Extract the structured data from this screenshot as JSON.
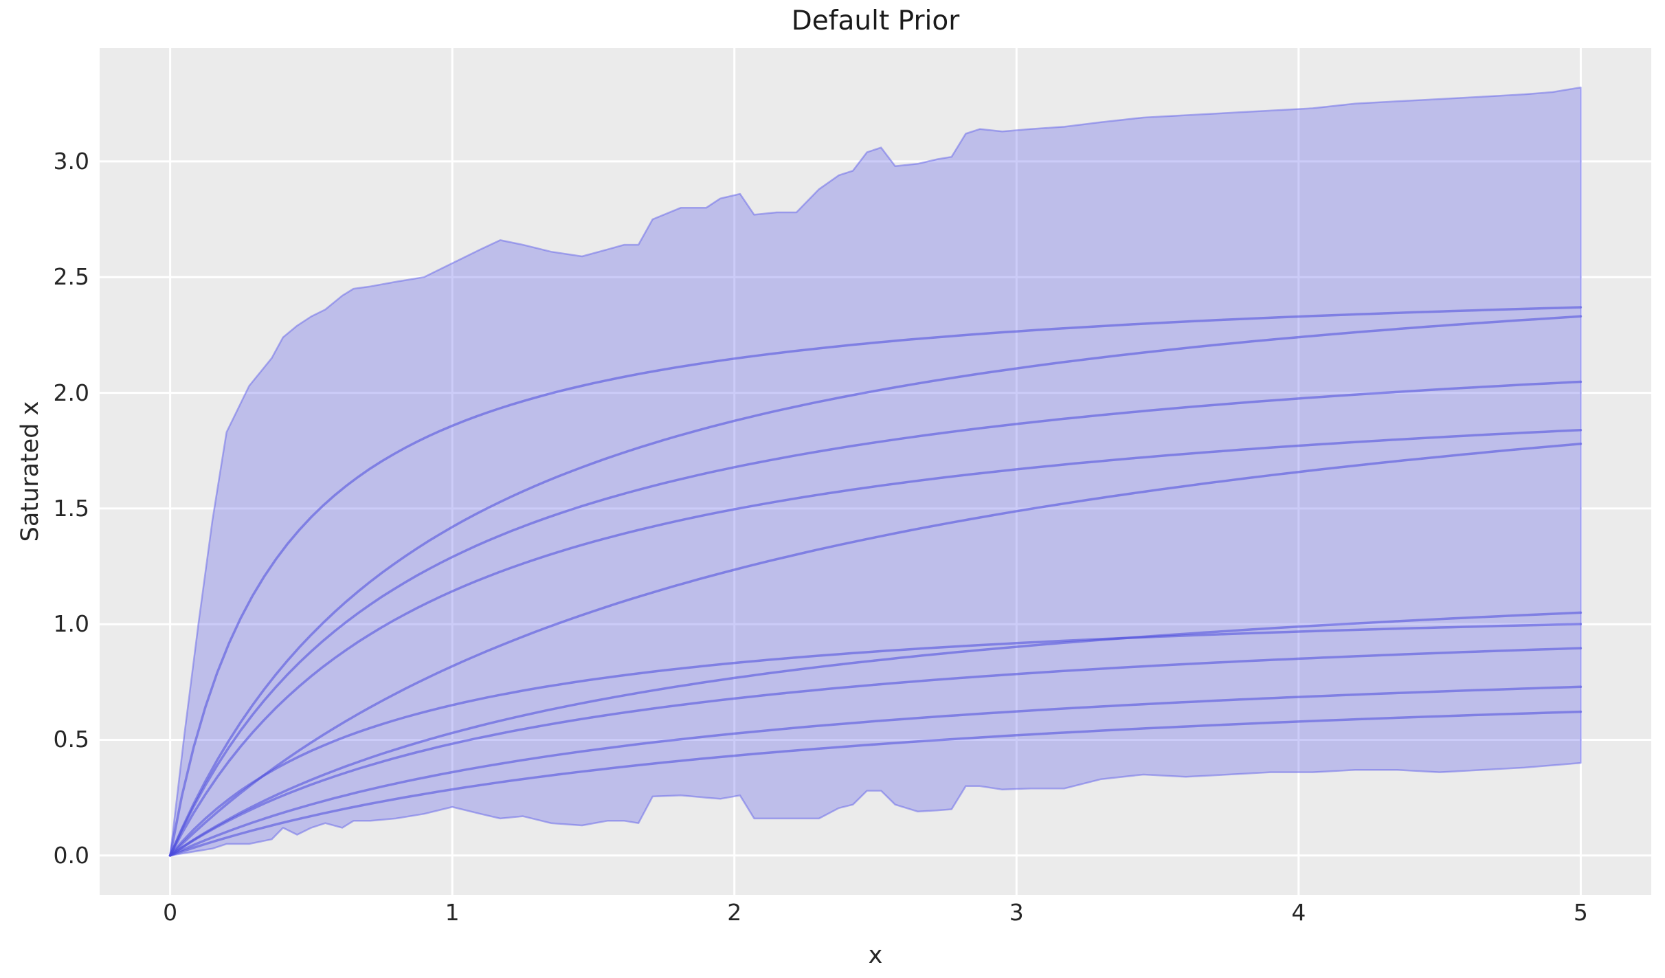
{
  "chart_data": {
    "type": "line",
    "title": "Default Prior",
    "xlabel": "x",
    "ylabel": "Saturated x",
    "xlim": [
      -0.25,
      5.25
    ],
    "ylim": [
      -0.17,
      3.49
    ],
    "grid": true,
    "legend": "none",
    "xticks": [
      0,
      1,
      2,
      3,
      4,
      5
    ],
    "xtick_labels": [
      "0",
      "1",
      "2",
      "3",
      "4",
      "5"
    ],
    "yticks": [
      0.0,
      0.5,
      1.0,
      1.5,
      2.0,
      2.5,
      3.0
    ],
    "ytick_labels": [
      "0.0",
      "0.5",
      "1.0",
      "1.5",
      "2.0",
      "2.5",
      "3.0"
    ],
    "colors": {
      "figure_bg": "#ffffff",
      "axes_bg": "#ebebeb",
      "grid": "#ffffff",
      "band_fill": "rgba(99,99,233,0.33)",
      "band_edge": "rgba(99,99,233,0.50)",
      "curve": "rgba(75,75,220,0.55)",
      "text": "#262626"
    },
    "band": {
      "name": "prior-hdi-band",
      "x": [
        0,
        0.05,
        0.1,
        0.15,
        0.2,
        0.28,
        0.36,
        0.4,
        0.45,
        0.5,
        0.55,
        0.61,
        0.65,
        0.71,
        0.8,
        0.9,
        1.0,
        1.1,
        1.17,
        1.25,
        1.35,
        1.46,
        1.55,
        1.61,
        1.66,
        1.71,
        1.81,
        1.9,
        1.95,
        2.02,
        2.07,
        2.15,
        2.22,
        2.3,
        2.37,
        2.42,
        2.47,
        2.52,
        2.57,
        2.65,
        2.72,
        2.77,
        2.82,
        2.87,
        2.95,
        3.05,
        3.17,
        3.3,
        3.45,
        3.6,
        3.75,
        3.9,
        4.05,
        4.2,
        4.35,
        4.5,
        4.65,
        4.8,
        4.9,
        5.0
      ],
      "high": [
        0,
        0.52,
        1.0,
        1.45,
        1.83,
        2.03,
        2.15,
        2.24,
        2.29,
        2.33,
        2.36,
        2.42,
        2.45,
        2.46,
        2.48,
        2.5,
        2.56,
        2.62,
        2.66,
        2.64,
        2.61,
        2.59,
        2.62,
        2.64,
        2.64,
        2.75,
        2.8,
        2.8,
        2.84,
        2.86,
        2.77,
        2.78,
        2.78,
        2.88,
        2.94,
        2.96,
        3.04,
        3.06,
        2.98,
        2.99,
        3.01,
        3.02,
        3.12,
        3.14,
        3.13,
        3.14,
        3.15,
        3.17,
        3.19,
        3.2,
        3.21,
        3.22,
        3.23,
        3.25,
        3.26,
        3.27,
        3.28,
        3.29,
        3.3,
        3.32
      ],
      "low": [
        0,
        0.01,
        0.02,
        0.03,
        0.05,
        0.05,
        0.07,
        0.12,
        0.09,
        0.12,
        0.14,
        0.12,
        0.15,
        0.15,
        0.16,
        0.18,
        0.21,
        0.18,
        0.16,
        0.17,
        0.14,
        0.13,
        0.15,
        0.15,
        0.14,
        0.255,
        0.26,
        0.25,
        0.245,
        0.26,
        0.16,
        0.16,
        0.16,
        0.16,
        0.205,
        0.22,
        0.28,
        0.28,
        0.22,
        0.19,
        0.195,
        0.2,
        0.3,
        0.3,
        0.285,
        0.29,
        0.29,
        0.33,
        0.35,
        0.34,
        0.35,
        0.36,
        0.36,
        0.37,
        0.37,
        0.36,
        0.37,
        0.38,
        0.39,
        0.4
      ]
    },
    "series_model": "y = a * x / (x + b), prior sample curves drawn from origin",
    "series_x_range": [
      0,
      5
    ],
    "series": [
      {
        "name": "prior-sample-1",
        "a": 2.545,
        "b": 0.37,
        "y_at_x5": 2.37
      },
      {
        "name": "prior-sample-2",
        "a": 2.775,
        "b": 0.954,
        "y_at_x5": 2.33
      },
      {
        "name": "prior-sample-3",
        "a": 2.4,
        "b": 0.86,
        "y_at_x5": 2.05
      },
      {
        "name": "prior-sample-4",
        "a": 2.17,
        "b": 0.9,
        "y_at_x5": 1.84
      },
      {
        "name": "prior-sample-5",
        "a": 2.52,
        "b": 2.08,
        "y_at_x5": 1.78
      },
      {
        "name": "prior-sample-6",
        "a": 1.391,
        "b": 1.625,
        "y_at_x5": 1.05
      },
      {
        "name": "prior-sample-7",
        "a": 1.156,
        "b": 0.778,
        "y_at_x5": 1.0
      },
      {
        "name": "prior-sample-8",
        "a": 1.14,
        "b": 1.36,
        "y_at_x5": 0.9
      },
      {
        "name": "prior-sample-9",
        "a": 0.98,
        "b": 1.72,
        "y_at_x5": 0.73
      },
      {
        "name": "prior-sample-10",
        "a": 0.88,
        "b": 2.08,
        "y_at_x5": 0.62
      }
    ]
  }
}
